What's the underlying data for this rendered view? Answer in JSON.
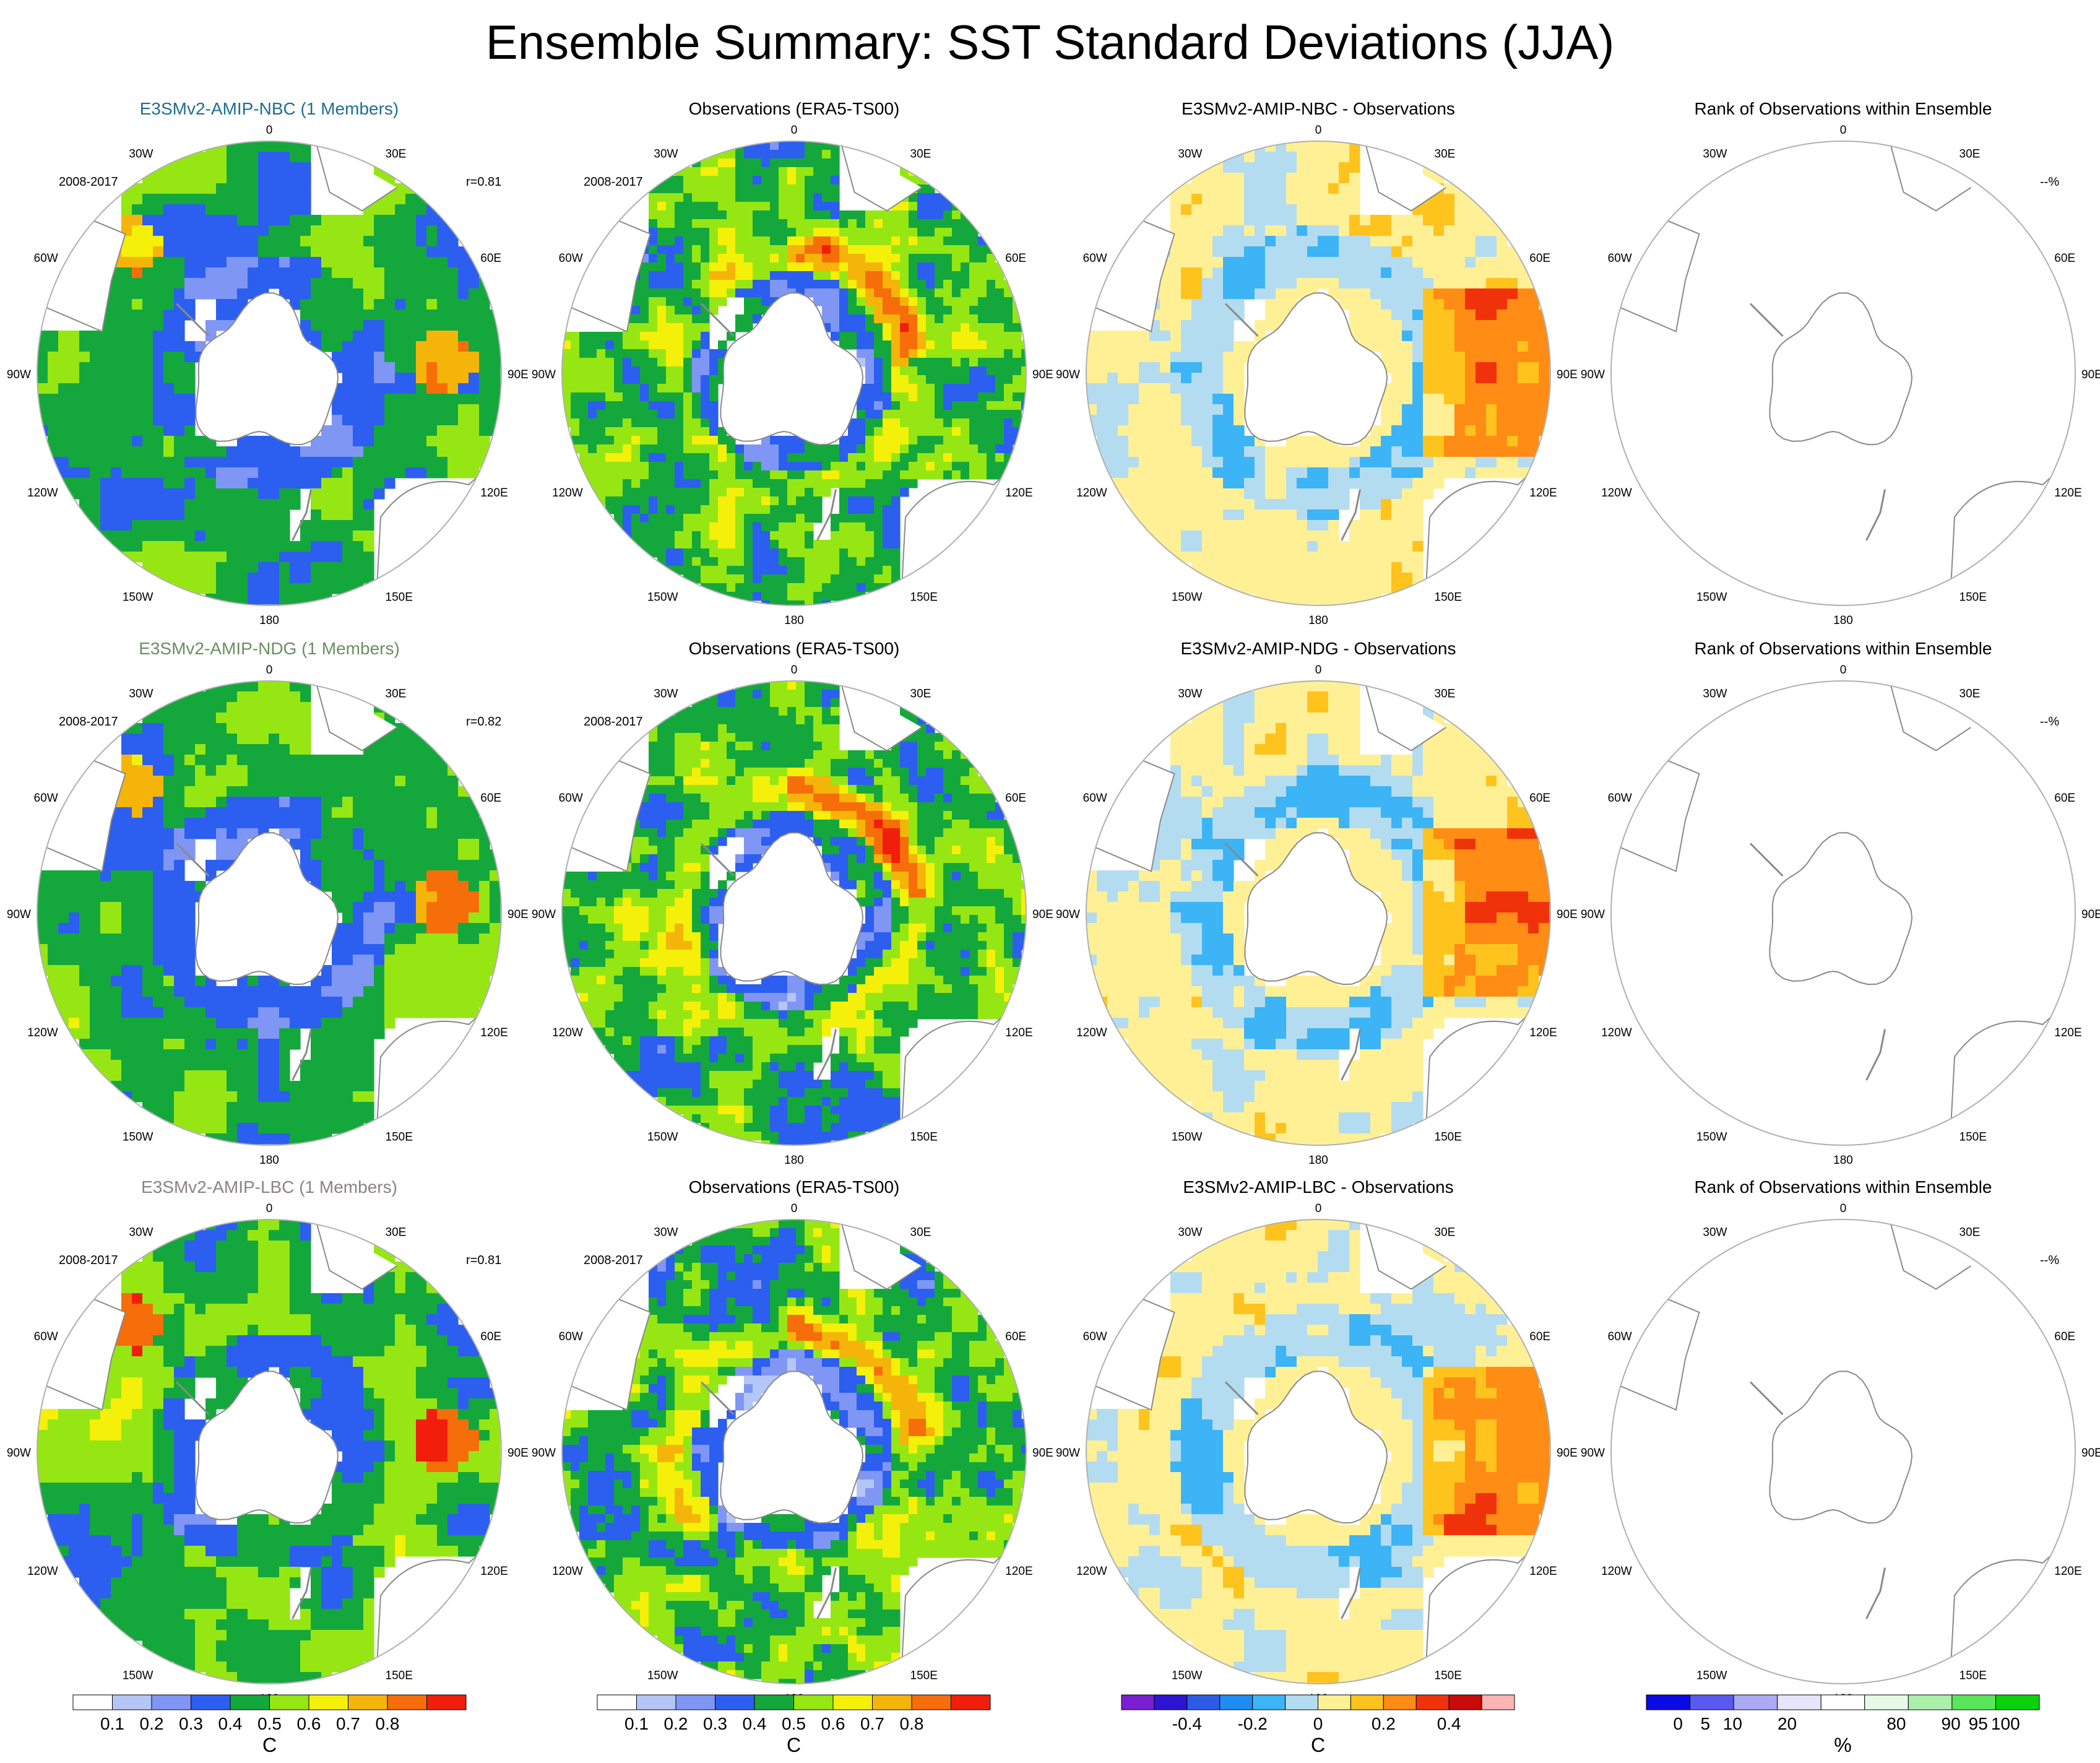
{
  "title": "Ensemble Summary: SST Standard Deviations (JJA)",
  "colors": {
    "model_title_colors": [
      "#1f6e91",
      "#6a8f60",
      "#8d8286"
    ],
    "coast": "#8a8a8a",
    "land_fill": "#ffffff"
  },
  "map_labels": {
    "top": "0",
    "bottom": "180",
    "left": "90W",
    "right": "90E",
    "upper_left_inner": "30W",
    "upper_left_outer": "60W",
    "lower_left_outer": "120W",
    "lower_left_inner": "150W",
    "upper_right_inner": "30E",
    "upper_right_outer": "60E",
    "lower_right_outer": "120E",
    "lower_right_inner": "150E"
  },
  "chart_data": [
    {
      "type": "heatmap",
      "projection": "south-polar-stereographic",
      "row": 1,
      "column": 1,
      "title": "E3SMv2-AMIP-NBC (1 Members)",
      "period": "2008-2017",
      "annotation": "r=0.81",
      "field": "std"
    },
    {
      "type": "heatmap",
      "projection": "south-polar-stereographic",
      "row": 1,
      "column": 2,
      "title": "Observations (ERA5-TS00)",
      "period": "2008-2017",
      "field": "obs"
    },
    {
      "type": "heatmap",
      "projection": "south-polar-stereographic",
      "row": 1,
      "column": 3,
      "title": "E3SMv2-AMIP-NBC - Observations",
      "field": "diff"
    },
    {
      "type": "heatmap",
      "projection": "south-polar-stereographic",
      "row": 1,
      "column": 4,
      "title": "Rank of Observations within Ensemble",
      "annotation": "--%",
      "field": "rank"
    },
    {
      "type": "heatmap",
      "projection": "south-polar-stereographic",
      "row": 2,
      "column": 1,
      "title": "E3SMv2-AMIP-NDG (1 Members)",
      "period": "2008-2017",
      "annotation": "r=0.82",
      "field": "std"
    },
    {
      "type": "heatmap",
      "projection": "south-polar-stereographic",
      "row": 2,
      "column": 2,
      "title": "Observations (ERA5-TS00)",
      "period": "2008-2017",
      "field": "obs"
    },
    {
      "type": "heatmap",
      "projection": "south-polar-stereographic",
      "row": 2,
      "column": 3,
      "title": "E3SMv2-AMIP-NDG - Observations",
      "field": "diff"
    },
    {
      "type": "heatmap",
      "projection": "south-polar-stereographic",
      "row": 2,
      "column": 4,
      "title": "Rank of Observations within Ensemble",
      "annotation": "--%",
      "field": "rank"
    },
    {
      "type": "heatmap",
      "projection": "south-polar-stereographic",
      "row": 3,
      "column": 1,
      "title": "E3SMv2-AMIP-LBC (1 Members)",
      "period": "2008-2017",
      "annotation": "r=0.81",
      "field": "std"
    },
    {
      "type": "heatmap",
      "projection": "south-polar-stereographic",
      "row": 3,
      "column": 2,
      "title": "Observations (ERA5-TS00)",
      "period": "2008-2017",
      "field": "obs"
    },
    {
      "type": "heatmap",
      "projection": "south-polar-stereographic",
      "row": 3,
      "column": 3,
      "title": "E3SMv2-AMIP-LBC - Observations",
      "field": "diff"
    },
    {
      "type": "heatmap",
      "projection": "south-polar-stereographic",
      "row": 3,
      "column": 4,
      "title": "Rank of Observations within Ensemble",
      "annotation": "--%",
      "field": "rank"
    }
  ],
  "colorbars": [
    {
      "unit": "C",
      "labels": [
        "0.1",
        "0.2",
        "0.3",
        "0.4",
        "0.5",
        "0.6",
        "0.7",
        "0.8"
      ],
      "colors": [
        "#ffffff",
        "#b4c6f5",
        "#8096f5",
        "#2c5ef0",
        "#14a83c",
        "#96e614",
        "#f5f00a",
        "#f5b40a",
        "#f56e0a",
        "#f01e0a"
      ]
    },
    {
      "unit": "C",
      "labels": [
        "0.1",
        "0.2",
        "0.3",
        "0.4",
        "0.5",
        "0.6",
        "0.7",
        "0.8"
      ],
      "colors": [
        "#ffffff",
        "#b4c6f5",
        "#8096f5",
        "#2c5ef0",
        "#14a83c",
        "#96e614",
        "#f5f00a",
        "#f5b40a",
        "#f56e0a",
        "#f01e0a"
      ]
    },
    {
      "unit": "C",
      "labels": [
        "-0.4",
        "-0.2",
        "0",
        "0.2",
        "0.4"
      ],
      "colors": [
        "#7a1ed2",
        "#2c14d2",
        "#2d5be5",
        "#1e8cf0",
        "#3cb4f5",
        "#b4dcf0",
        "#fff096",
        "#ffc31e",
        "#ff8c14",
        "#f0320a",
        "#c80a0a",
        "#ffb4b4"
      ]
    },
    {
      "unit": "%",
      "labels": [
        "0",
        "5",
        "10",
        "20",
        "80",
        "90",
        "95",
        "100"
      ],
      "colors": [
        "#0a0ae6",
        "#5a5af0",
        "#aaaaf5",
        "#e6e6fa",
        "#ffffff",
        "#e6fae6",
        "#aaf0aa",
        "#5ae65a",
        "#0ad20a"
      ]
    }
  ]
}
